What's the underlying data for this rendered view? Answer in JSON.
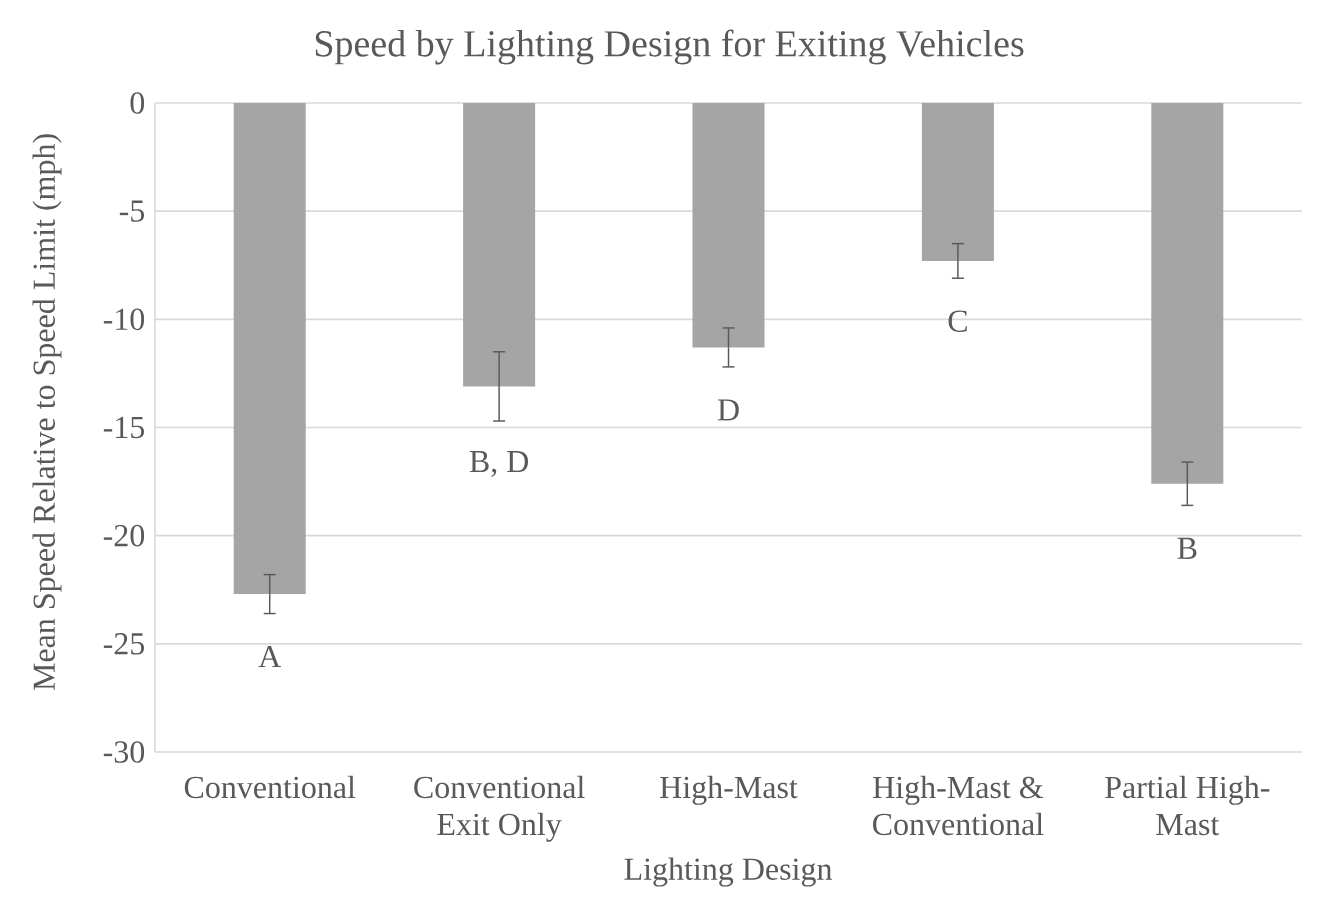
{
  "chart_data": {
    "type": "bar",
    "title": "Speed by Lighting Design for Exiting Vehicles",
    "xlabel": "Lighting Design",
    "ylabel": "Mean Speed Relative to Speed Limit (mph)",
    "categories": [
      "Conventional",
      "Conventional Exit Only",
      "High-Mast",
      "High-Mast & Conventional",
      "Partial High-Mast"
    ],
    "values": [
      -22.7,
      -13.1,
      -11.3,
      -7.3,
      -17.6
    ],
    "errors": [
      0.9,
      1.6,
      0.9,
      0.8,
      1.0
    ],
    "color": "#a5a5a5",
    "ylim": [
      -30,
      0
    ],
    "yticks": [
      0,
      -5,
      -10,
      -15,
      -20,
      -25,
      -30
    ],
    "grid": "y",
    "annotations": [
      "A",
      "B, D",
      "D",
      "C",
      "B"
    ]
  }
}
